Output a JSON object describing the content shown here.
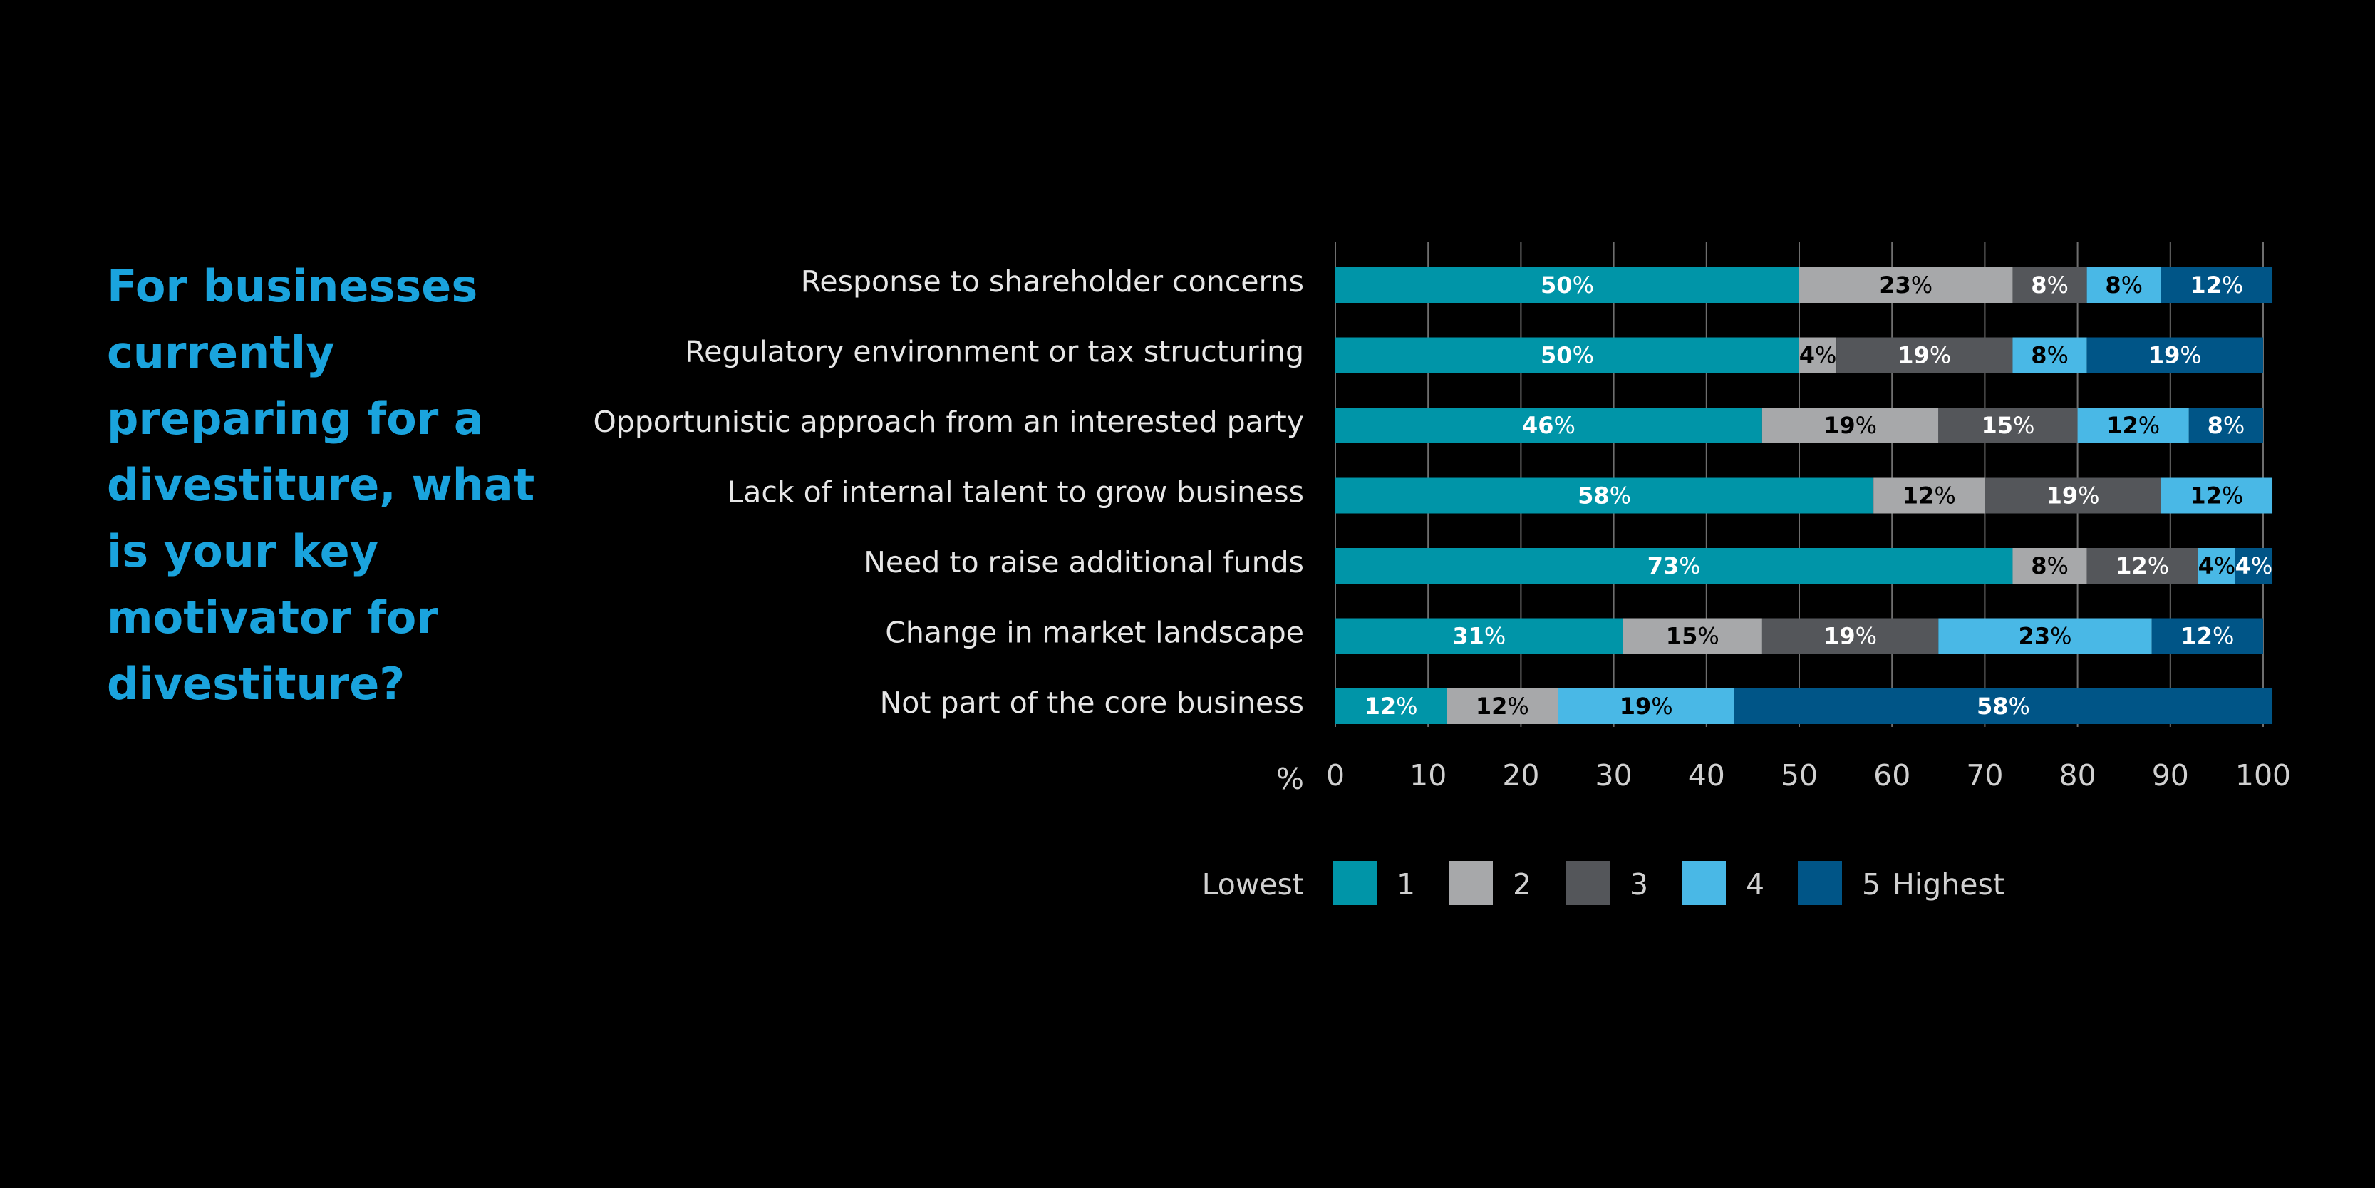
{
  "question": "For businesses currently preparing for a divestiture, what is your key motivator for divestiture?",
  "chart_data": {
    "type": "bar",
    "orientation": "horizontal",
    "stacked": true,
    "categories": [
      "Response to shareholder concerns",
      "Regulatory environment or tax structuring",
      "Opportunistic approach from an interested party",
      "Lack of internal talent to grow business",
      "Need to raise additional funds",
      "Change in market landscape",
      "Not part of the core business"
    ],
    "series": [
      {
        "name": "1",
        "color": "#0095a8",
        "label_color": "#ffffff",
        "values": [
          50,
          50,
          46,
          58,
          73,
          31,
          12
        ]
      },
      {
        "name": "2",
        "color": "#a7a8aa",
        "label_color": "#000000",
        "values": [
          23,
          4,
          19,
          12,
          8,
          15,
          12
        ]
      },
      {
        "name": "3",
        "color": "#54565a",
        "label_color": "#ffffff",
        "values": [
          8,
          19,
          15,
          19,
          12,
          19,
          0
        ]
      },
      {
        "name": "4",
        "color": "#49b8e6",
        "label_color": "#000000",
        "values": [
          8,
          8,
          12,
          12,
          4,
          23,
          19
        ]
      },
      {
        "name": "5",
        "color": "#005587",
        "label_color": "#ffffff",
        "values": [
          12,
          19,
          8,
          0,
          4,
          12,
          58
        ]
      }
    ],
    "data_labels": [
      [
        "50",
        "23",
        "8",
        "8",
        "12"
      ],
      [
        "50",
        "4",
        "19",
        "8",
        "19"
      ],
      [
        "46",
        "19",
        "15",
        "12",
        "8"
      ],
      [
        "58",
        "12",
        "19",
        "12",
        ""
      ],
      [
        "73",
        "8",
        "12",
        "4",
        "4"
      ],
      [
        "31",
        "15",
        "19",
        "23",
        "12"
      ],
      [
        "12",
        "12",
        "",
        "19",
        "58"
      ]
    ],
    "label_suffix": "%",
    "xlabel": "%",
    "xlim": [
      0,
      100
    ],
    "xticks": [
      "0",
      "10",
      "20",
      "30",
      "40",
      "50",
      "60",
      "70",
      "80",
      "90",
      "100"
    ],
    "grid": true,
    "legend": {
      "position": "bottom",
      "low_label": "Lowest",
      "high_label": "Highest",
      "items": [
        "1",
        "2",
        "3",
        "4",
        "5"
      ]
    }
  }
}
